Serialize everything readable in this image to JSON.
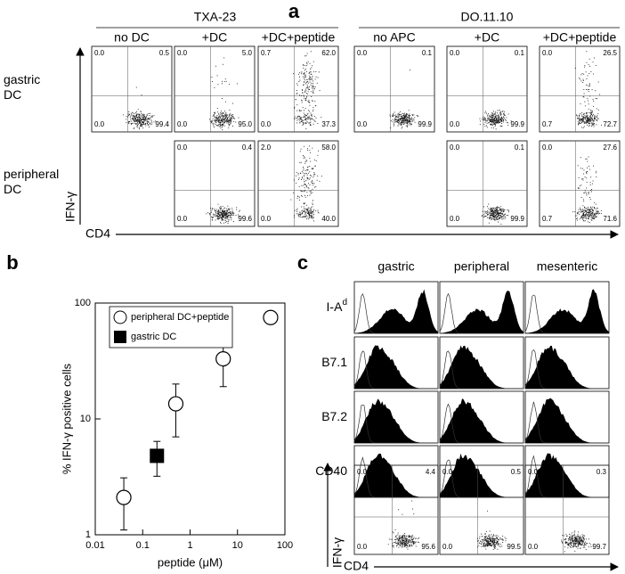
{
  "panel_a": {
    "label": "a",
    "groups": [
      {
        "name": "TXA-23",
        "columns": [
          "no DC",
          "+DC",
          "+DC+peptide"
        ]
      },
      {
        "name": "DO.11.10",
        "columns": [
          "no APC",
          "+DC",
          "+DC+peptide"
        ]
      }
    ],
    "rows": [
      "gastric DC",
      "peripheral DC"
    ],
    "y_axis": "IFN-γ",
    "x_axis": "CD4",
    "plots": [
      [
        [
          "0.0",
          "0.5",
          "0.0",
          "99.4"
        ],
        [
          "0.0",
          "5.0",
          "0.0",
          "95.0"
        ],
        [
          "0.7",
          "62.0",
          "0.0",
          "37.3"
        ],
        [
          "0.0",
          "0.1",
          "0.0",
          "99.9"
        ],
        [
          "0.0",
          "0.1",
          "0.0",
          "99.9"
        ],
        [
          "0.0",
          "26.5",
          "0.7",
          "72.7"
        ]
      ],
      [
        null,
        [
          "0.0",
          "0.4",
          "0.0",
          "99.6"
        ],
        [
          "2.0",
          "58.0",
          "0.0",
          "40.0"
        ],
        null,
        [
          "0.0",
          "0.1",
          "0.0",
          "99.9"
        ],
        [
          "0.0",
          "27.6",
          "0.7",
          "71.6"
        ]
      ]
    ]
  },
  "panel_b": {
    "label": "b",
    "chart_data": {
      "type": "scatter",
      "x_label": "peptide (μM)",
      "y_label": "% IFN-γ positive cells",
      "xlim": [
        0.01,
        100
      ],
      "ylim": [
        1,
        100
      ],
      "log_x": true,
      "log_y": true,
      "xticks": [
        0.01,
        0.1,
        1,
        10,
        100
      ],
      "yticks": [
        1,
        10,
        100
      ],
      "legend": "upper left",
      "series": [
        {
          "name": "peripheral DC+peptide",
          "marker": "open-circle",
          "x": [
            0.04,
            0.5,
            5,
            50
          ],
          "values": [
            2.1,
            13.5,
            33,
            75
          ],
          "errors": [
            1.0,
            6.5,
            14,
            null
          ]
        },
        {
          "name": "gastric DC",
          "marker": "filled-square",
          "x": [
            0.2
          ],
          "values": [
            4.8
          ],
          "errors": [
            1.6
          ]
        }
      ]
    }
  },
  "panel_c": {
    "label": "c",
    "columns": [
      "gastric",
      "peripheral",
      "mesenteric"
    ],
    "markers": [
      {
        "base": "I-A",
        "sup": "d"
      },
      {
        "base": "B7.1"
      },
      {
        "base": "B7.2"
      },
      {
        "base": "CD40"
      }
    ],
    "y_axis": "IFN-γ",
    "x_axis": "CD4",
    "plots": [
      [
        "0.0",
        "4.4",
        "0.0",
        "95.6"
      ],
      [
        "0.0",
        "0.5",
        "0.0",
        "99.5"
      ],
      [
        "0.0",
        "0.3",
        "0.0",
        "99.7"
      ]
    ]
  }
}
